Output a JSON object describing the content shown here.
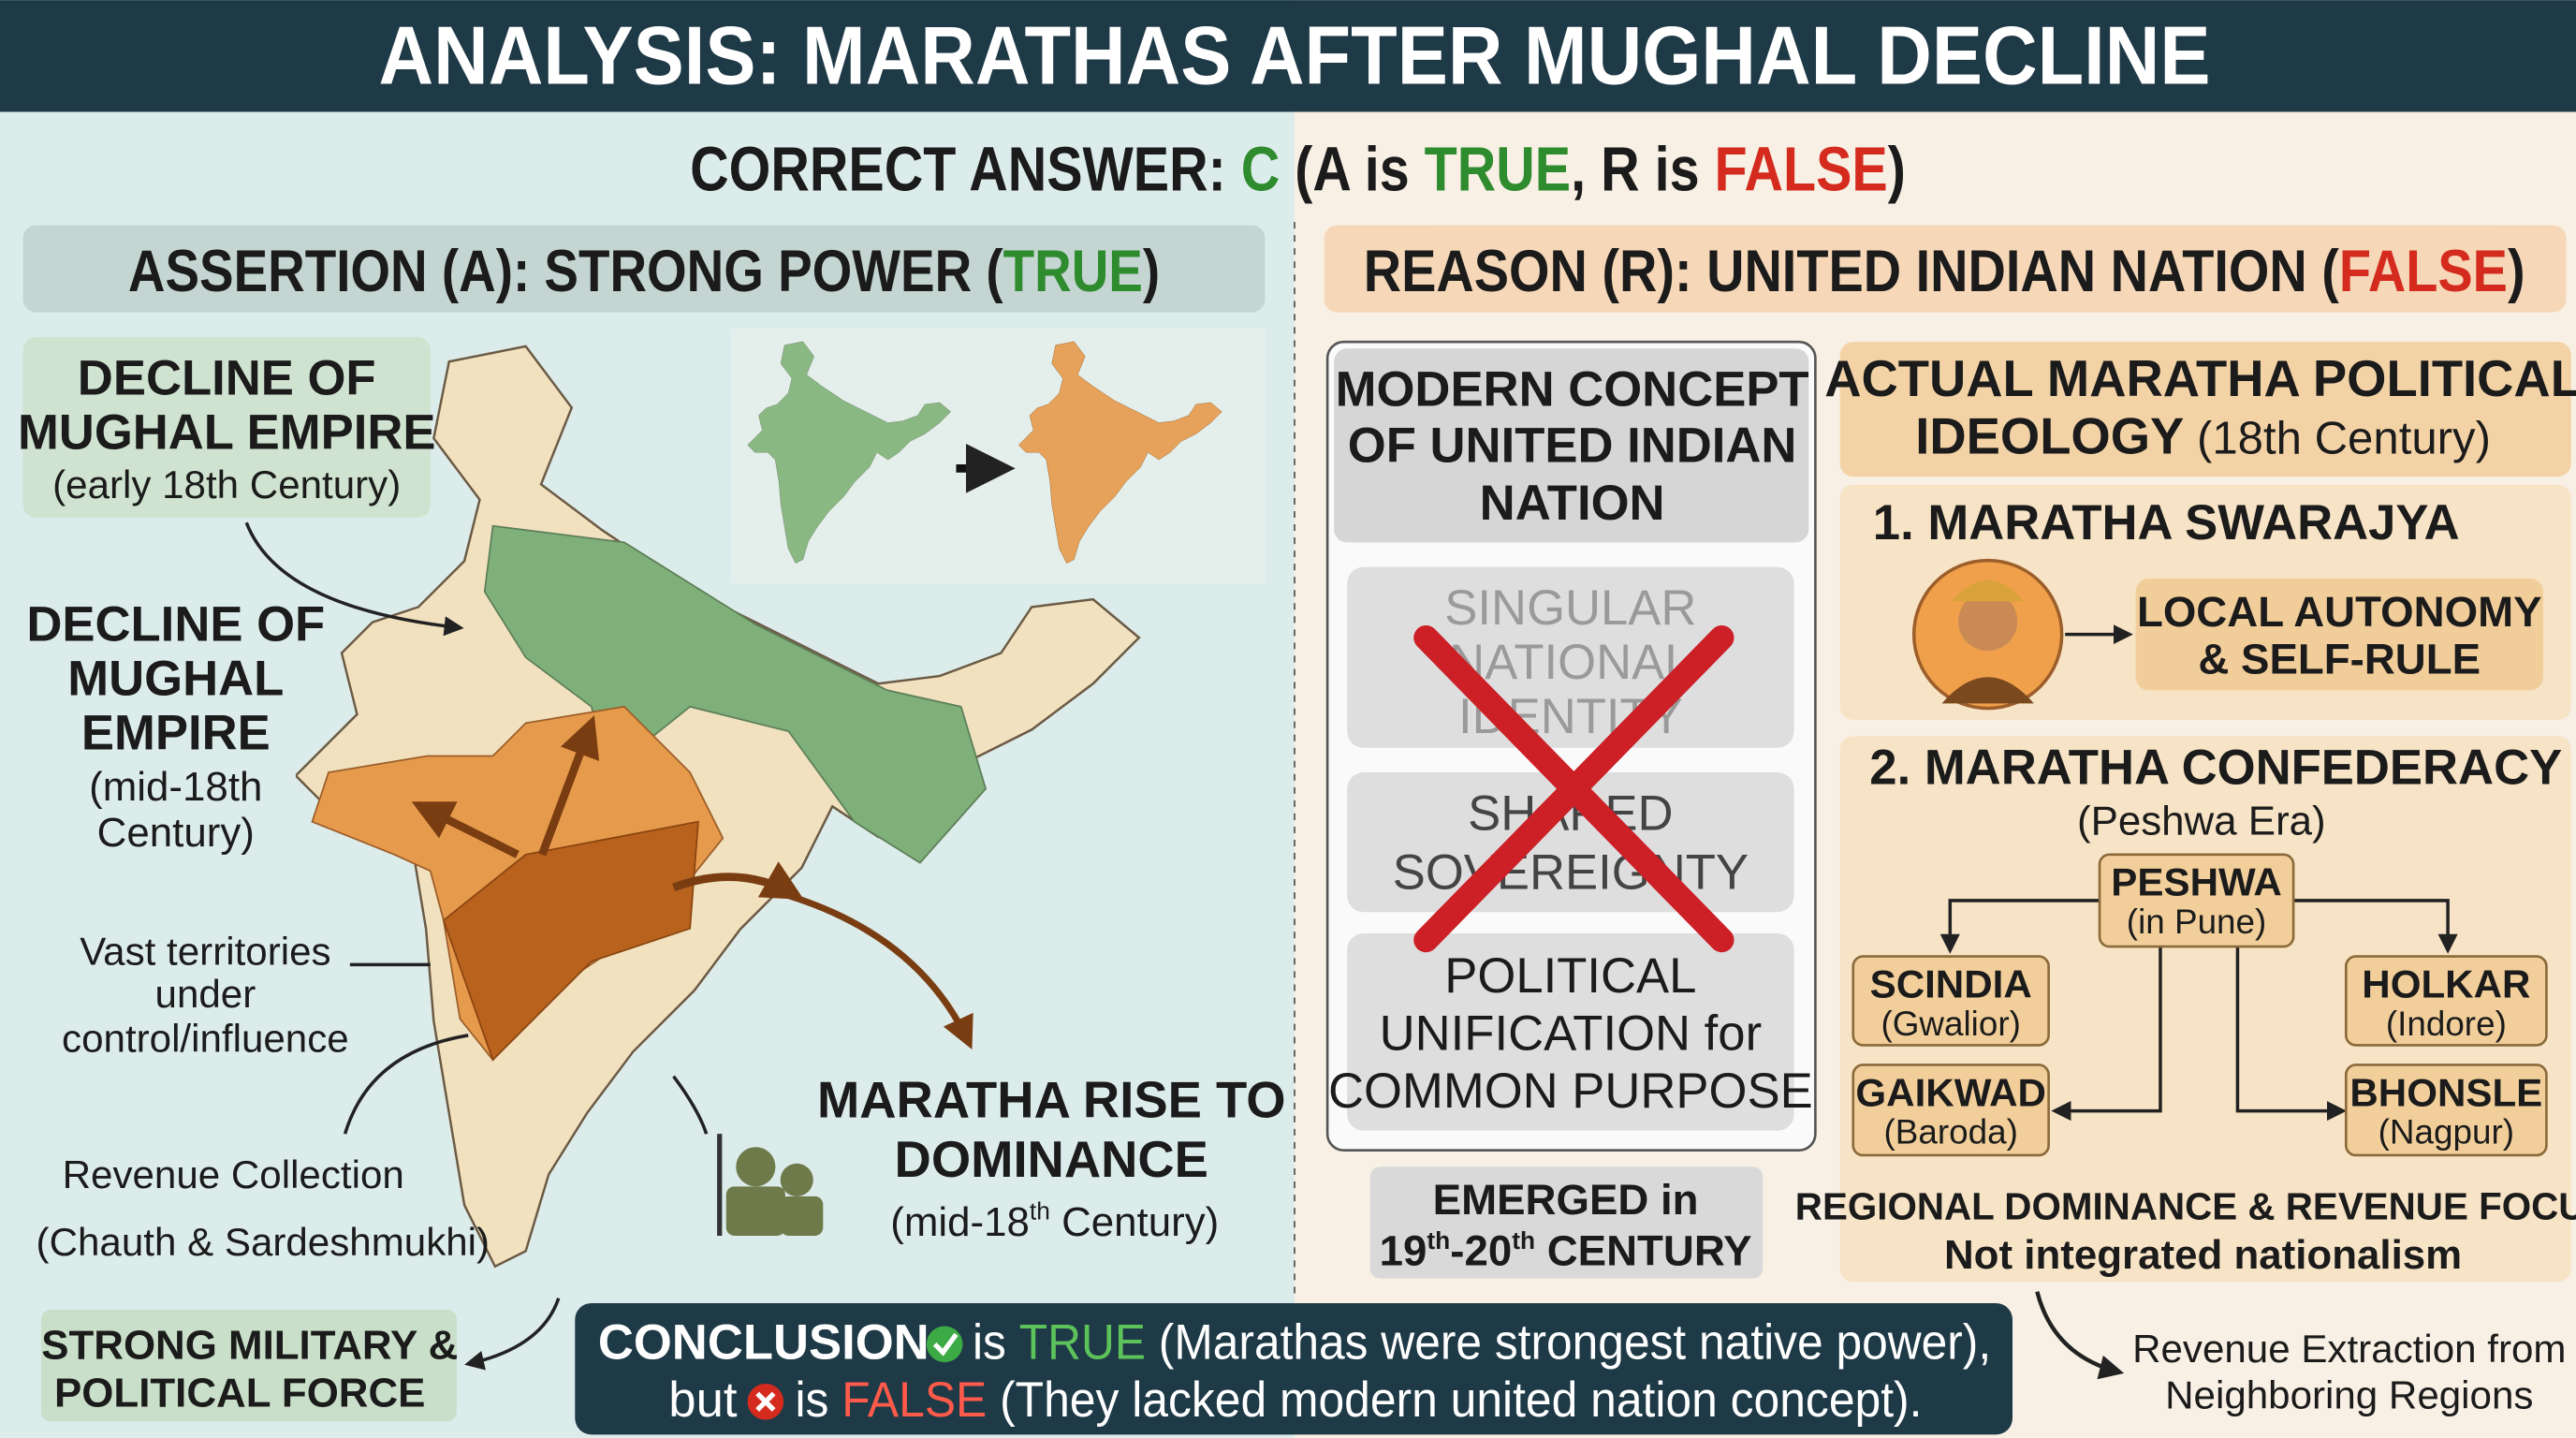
{
  "header": {
    "title": "ANALYSIS: MARATHAS AFTER MUGHAL DECLINE"
  },
  "answer": {
    "label": "CORRECT ANSWER: ",
    "choice": "C",
    "open": " (A is ",
    "a_status": "TRUE",
    "middle": ", R is ",
    "r_status": "FALSE",
    "close": ")"
  },
  "assertion": {
    "heading": {
      "text": "ASSERTION (A): STRONG POWER (",
      "status": "TRUE",
      "close": ")"
    },
    "early_decline": {
      "title": [
        "DECLINE OF",
        "MUGHAL EMPIRE"
      ],
      "period": "(early 18th Century)"
    },
    "mid_decline": {
      "title": [
        "DECLINE OF",
        "MUGHAL",
        "EMPIRE"
      ],
      "period": [
        "(mid-18th",
        "Century)"
      ]
    },
    "territories": [
      "Vast territories",
      "under",
      "control/influence"
    ],
    "revenue": [
      "Revenue Collection",
      "(Chauth & Sardeshmukhi)"
    ],
    "military": [
      "STRONG MILITARY &",
      "POLITICAL FORCE"
    ],
    "rise": {
      "title": [
        "MARATHA RISE TO",
        "DOMINANCE"
      ],
      "period": {
        "before": "(mid-18",
        "sup": "th",
        "after": " Century)"
      }
    }
  },
  "reason": {
    "heading": {
      "text": "REASON (R): UNITED INDIAN NATION (",
      "status": "FALSE",
      "close": ")"
    },
    "modern": {
      "title": [
        "MODERN CONCEPT",
        "OF UNITED INDIAN",
        "NATION"
      ],
      "items": [
        [
          "SINGULAR",
          "NATIONAL",
          "IDENTITY"
        ],
        [
          "SHARED",
          "SOVEREIGNTY"
        ],
        [
          "POLITICAL",
          "UNIFICATION for",
          "COMMON PURPOSE"
        ]
      ],
      "emerged": {
        "line1": "EMERGED in",
        "line2": [
          "19",
          "th",
          "-20",
          "th",
          " CENTURY"
        ]
      }
    },
    "actual": {
      "title": {
        "line1": "ACTUAL MARATHA POLITICAL",
        "bold": "IDEOLOGY",
        "rest": " (18th Century)"
      },
      "swarajya": {
        "heading": "1. MARATHA SWARAJYA",
        "result": [
          "LOCAL AUTONOMY",
          "& SELF-RULE"
        ]
      },
      "confederacy": {
        "heading": "2. MARATHA CONFEDERACY",
        "era": "(Peshwa Era)",
        "nodes": [
          {
            "name": "PESHWA",
            "place": "(in Pune)"
          },
          {
            "name": "SCINDIA",
            "place": "(Gwalior)"
          },
          {
            "name": "HOLKAR",
            "place": "(Indore)"
          },
          {
            "name": "GAIKWAD",
            "place": "(Baroda)"
          },
          {
            "name": "BHONSLE",
            "place": "(Nagpur)"
          }
        ],
        "footer": [
          "REGIONAL DOMINANCE & REVENUE FOCUS",
          "Not integrated nationalism"
        ]
      },
      "note": [
        "Revenue Extraction from",
        "Neighboring Regions"
      ]
    }
  },
  "conclusion": {
    "line1": {
      "label": "CONCLUSION:",
      "is": "is ",
      "status": "TRUE",
      "text": " (Marathas were strongest native power),"
    },
    "line2": {
      "but": "but",
      "is": "is ",
      "status": "FALSE",
      "text": " (They lacked modern united nation concept)."
    }
  }
}
